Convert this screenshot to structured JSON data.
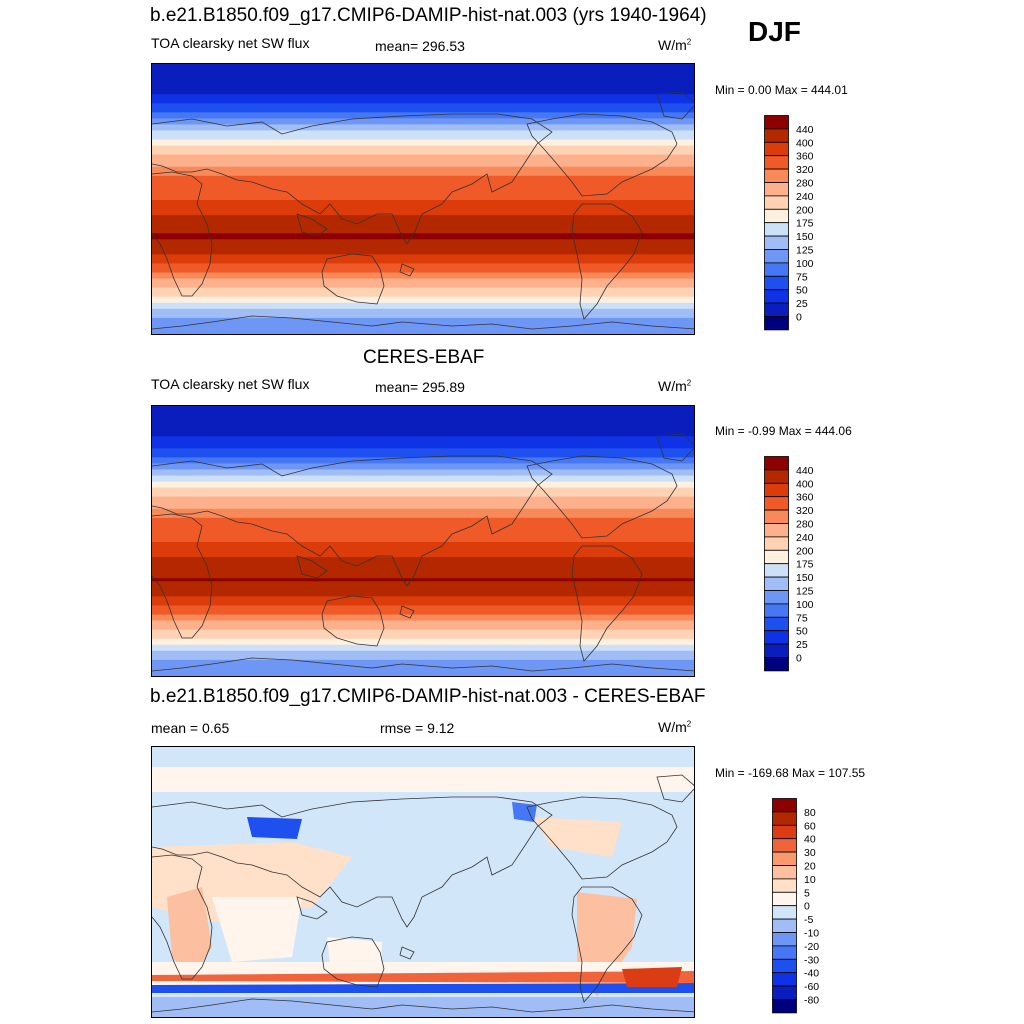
{
  "season": "DJF",
  "units_base": "W/m",
  "units_exp": "2",
  "panels": [
    {
      "title": "b.e21.B1850.f09_g17.CMIP6-DAMIP-hist-nat.003 (yrs 1940-1964)",
      "variable": "TOA clearsky net SW flux",
      "mean_text": "mean= 296.53",
      "minmax": "Min =   0.00 Max = 444.01"
    },
    {
      "title": "CERES-EBAF",
      "variable": "TOA clearsky net SW flux",
      "mean_text": "mean= 295.89",
      "minmax": "Min =  -0.99 Max = 444.06"
    },
    {
      "title": "b.e21.B1850.f09_g17.CMIP6-DAMIP-hist-nat.003 - CERES-EBAF",
      "mean_text": "mean =   0.65",
      "rmse_text": "rmse =   9.12",
      "minmax": "Min = -169.68 Max = 107.55"
    }
  ],
  "chart_data": [
    {
      "type": "heatmap",
      "title": "b.e21.B1850.f09_g17.CMIP6-DAMIP-hist-nat.003 (yrs 1940-1964)",
      "subtitle": "TOA clearsky net SW flux",
      "units": "W/m2",
      "mean": 296.53,
      "min": 0.0,
      "max": 444.01,
      "colorbar_levels": [
        0,
        25,
        50,
        75,
        100,
        125,
        150,
        175,
        200,
        240,
        280,
        320,
        360,
        400,
        440
      ],
      "colorbar_colors": [
        "#00007f",
        "#0a1ebe",
        "#0f32e6",
        "#1e50f0",
        "#4678f5",
        "#6e96f5",
        "#a0bef5",
        "#cce0f8",
        "#fff0e0",
        "#ffd2b4",
        "#fcb08c",
        "#f88a5a",
        "#f05a28",
        "#dc3c0a",
        "#b42800",
        "#8c0000"
      ],
      "zonal_profile_lat": [
        90,
        75,
        60,
        45,
        30,
        15,
        0,
        -15,
        -25,
        -35,
        -45,
        -55,
        -65,
        -75,
        -90
      ],
      "zonal_profile_value": [
        0,
        10,
        60,
        150,
        240,
        320,
        360,
        420,
        445,
        400,
        340,
        260,
        190,
        130,
        110
      ]
    },
    {
      "type": "heatmap",
      "title": "CERES-EBAF",
      "subtitle": "TOA clearsky net SW flux",
      "units": "W/m2",
      "mean": 295.89,
      "min": -0.99,
      "max": 444.06,
      "colorbar_levels": [
        0,
        25,
        50,
        75,
        100,
        125,
        150,
        175,
        200,
        240,
        280,
        320,
        360,
        400,
        440
      ],
      "colorbar_colors": [
        "#00007f",
        "#0a1ebe",
        "#0f32e6",
        "#1e50f0",
        "#4678f5",
        "#6e96f5",
        "#a0bef5",
        "#cce0f8",
        "#fff0e0",
        "#ffd2b4",
        "#fcb08c",
        "#f88a5a",
        "#f05a28",
        "#dc3c0a",
        "#b42800",
        "#8c0000"
      ],
      "zonal_profile_lat": [
        90,
        75,
        60,
        45,
        30,
        15,
        0,
        -15,
        -25,
        -35,
        -45,
        -55,
        -65,
        -75,
        -90
      ],
      "zonal_profile_value": [
        0,
        10,
        55,
        145,
        235,
        320,
        360,
        420,
        444,
        400,
        340,
        260,
        190,
        130,
        110
      ]
    },
    {
      "type": "heatmap",
      "title": "b.e21.B1850.f09_g17.CMIP6-DAMIP-hist-nat.003 - CERES-EBAF",
      "units": "W/m2",
      "mean": 0.65,
      "rmse": 9.12,
      "min": -169.68,
      "max": 107.55,
      "colorbar_levels": [
        -80,
        -60,
        -40,
        -30,
        -20,
        -10,
        -5,
        0,
        5,
        10,
        20,
        30,
        40,
        60,
        80
      ],
      "colorbar_colors": [
        "#00007f",
        "#0a1ebe",
        "#0f32e6",
        "#1e50f0",
        "#4678f5",
        "#6e96f5",
        "#a0bef5",
        "#d2e6fa",
        "#fff5ec",
        "#ffe0c8",
        "#fcc0a0",
        "#f89a6e",
        "#f0643c",
        "#dc3c14",
        "#b42800",
        "#8c0000"
      ]
    }
  ]
}
